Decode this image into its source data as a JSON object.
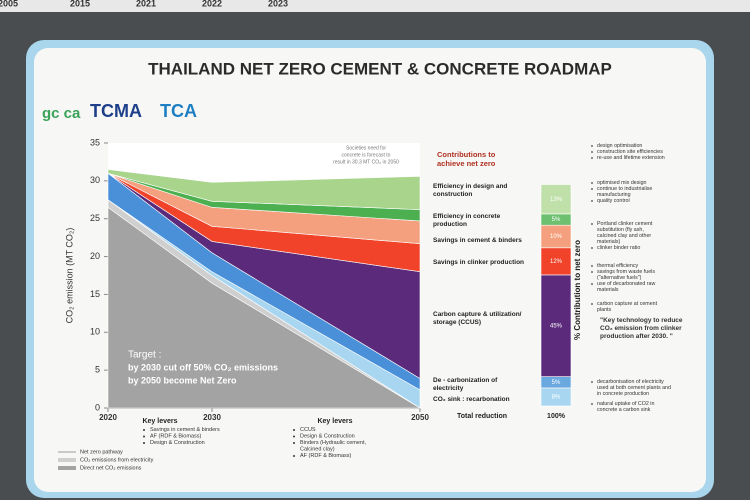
{
  "header": {
    "title": "THAILAND NET ZERO CEMENT & CONCRETE ROADMAP",
    "logos": [
      "gc ca",
      "TCMA",
      "TCA"
    ]
  },
  "top_strip": [
    "2005",
    "2015",
    "2021",
    "2022",
    "2023"
  ],
  "chart_data": [
    {
      "type": "area",
      "y_label": "CO₂ emission (MT CO₂)",
      "x": [
        2020,
        2030,
        2050
      ],
      "xlim": [
        2020,
        2050
      ],
      "xticks": [
        2020,
        2030,
        2050
      ],
      "ylim": [
        0,
        35
      ],
      "yticks": [
        0,
        5,
        10,
        15,
        20,
        25,
        30,
        35
      ],
      "series": [
        {
          "name": "Direct net CO₂ emissions",
          "color": "#a3a3a3",
          "values": [
            26.5,
            16.5,
            0
          ]
        },
        {
          "name": "CO₂ emissions from electricity",
          "color": "#cfcfcf",
          "values": [
            1,
            1,
            0
          ]
        },
        {
          "name": "CO₂ sink : recarbonation",
          "color": "#a8d6f0",
          "values": [
            0,
            0.5,
            2.4
          ]
        },
        {
          "name": "De - carbonization of electricity",
          "color": "#4a90d9",
          "values": [
            3.5,
            2.5,
            1.5
          ]
        },
        {
          "name": "Carbon capture & utilization/ storage (CCUS)",
          "color": "#5b2a7a",
          "values": [
            0,
            1.5,
            14.1
          ]
        },
        {
          "name": "Savings in clinker production",
          "color": "#f0432a",
          "values": [
            0,
            2,
            3.7
          ]
        },
        {
          "name": "Savings in cement & binders",
          "color": "#f4a07e",
          "values": [
            0,
            2.5,
            3
          ]
        },
        {
          "name": "Efficiency in concrete production",
          "color": "#4caf50",
          "values": [
            0,
            0.8,
            1.5
          ]
        },
        {
          "name": "Efficiency in design and construction",
          "color": "#a8d48c",
          "values": [
            0.5,
            2.5,
            4.4
          ]
        }
      ],
      "legend_extra": "Net zero pathway",
      "annotation": [
        "Societies need for",
        "concrete is forecast to",
        "result in 30.3 MT CO₂ in 2050"
      ],
      "target": [
        "Target :",
        "by 2030 cut off 50% CO₂ emissions",
        "by 2050 become Net Zero"
      ],
      "key_levers_title": "Key levers",
      "key_levers": [
        [
          "Savings in cement & binders",
          "AF (RDF & Biomass)",
          "Design & Construction"
        ],
        [
          "CCUS",
          "Design & Construction",
          "Binders (Hydraulic cement, Calcined clay)",
          "AF (RDF & Biomass)"
        ]
      ]
    },
    {
      "type": "stacked-bar",
      "title": "Contributions to achieve net zero",
      "y_label": "% Contribution to net zero",
      "values": [
        8,
        5,
        45,
        12,
        10,
        5,
        13
      ],
      "value_labels": [
        "8%",
        "5%",
        "45%",
        "12%",
        "10%",
        "5%",
        "13%"
      ],
      "colors": [
        "#a8d6f0",
        "#6aa8e0",
        "#5b2a7a",
        "#f0432a",
        "#f4a07e",
        "#6cc070",
        "#bfe0a8"
      ],
      "total_label": "Total reduction",
      "total": {
        "value": 100,
        "label": "100%"
      },
      "notes": [
        [
          "natural uptake of CO2 in concrete a carbon sink"
        ],
        [
          "decarbonisation of electricity used at both cement plants and in concrete production"
        ],
        [
          "carbon capture at cement plants",
          "\"Key technology to reduce CO₂ emission from clinker production after 2030. \""
        ],
        [
          "thermal efficiency",
          "savings from waste fuels (\"alternative fuels\")",
          "use of decarbonated raw materials"
        ],
        [
          "Portland clinker cement substitution (fly ash, calcined clay and other materials)",
          "clinker binder ratio"
        ],
        [
          "optimised mix design",
          "continue to industrialise manufacturing",
          "quality control"
        ],
        [
          "design optimisation",
          "construction site efficiencies",
          "re-use and lifetime extension"
        ]
      ]
    }
  ]
}
